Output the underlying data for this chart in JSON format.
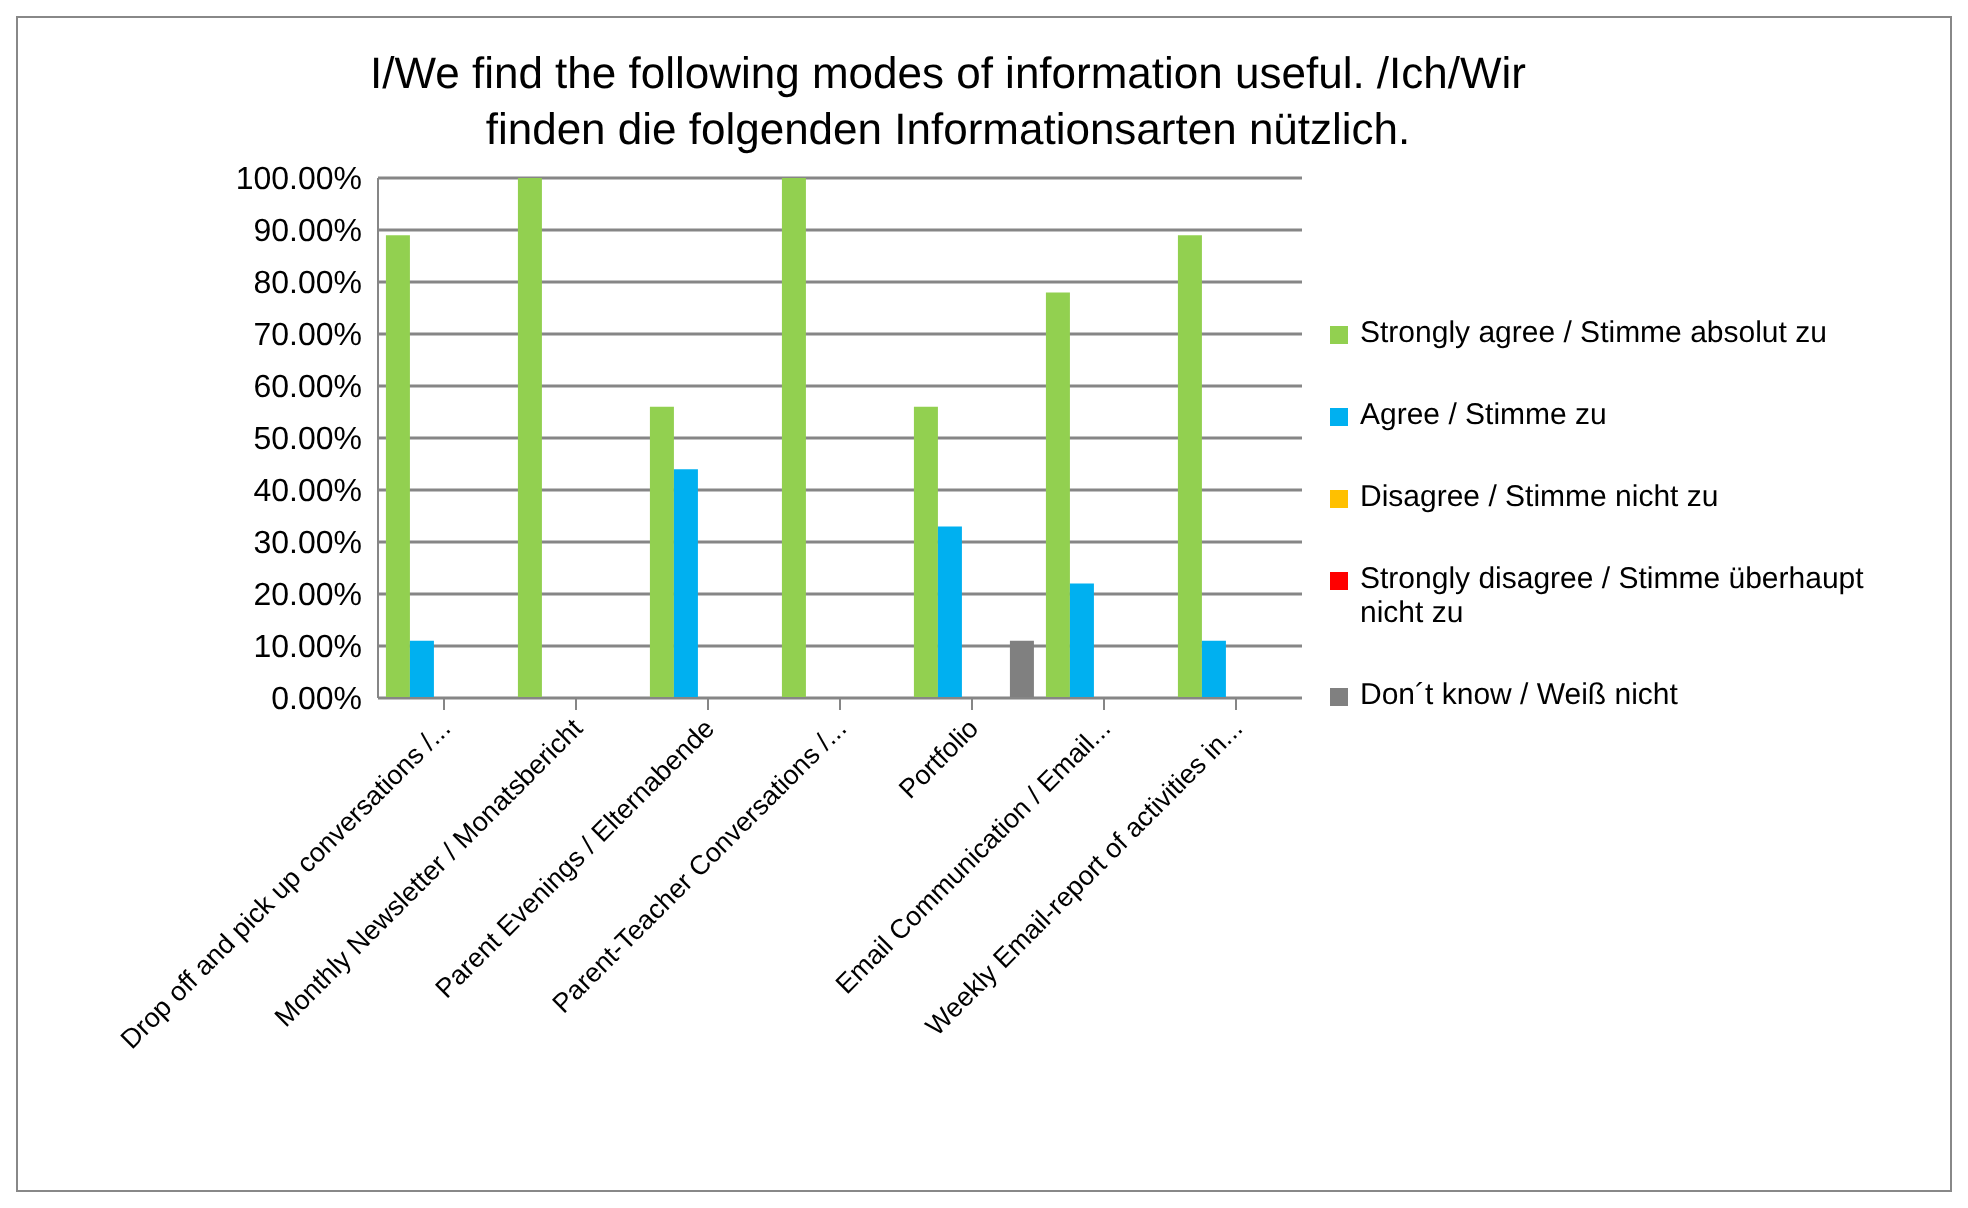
{
  "chart_data": {
    "type": "bar",
    "title": "I/We find the following modes of information useful. /Ich/Wir finden die folgenden Informationsarten nützlich.",
    "categories": [
      "Drop off and pick up conversations /...",
      "Monthly Newsletter / Monatsbericht",
      "Parent Evenings / Elternabende",
      "Parent-Teacher Conversations /...",
      "Portfolio",
      "Email Communication / Email...",
      "Weekly Email-report of activities in..."
    ],
    "series": [
      {
        "name": "Strongly agree / Stimme absolut zu",
        "color": "#92d050",
        "values": [
          89,
          100,
          56,
          100,
          56,
          78,
          89
        ]
      },
      {
        "name": "Agree / Stimme zu",
        "color": "#00b0f0",
        "values": [
          11,
          0,
          44,
          0,
          33,
          22,
          11
        ]
      },
      {
        "name": "Disagree / Stimme nicht zu",
        "color": "#ffc000",
        "values": [
          0,
          0,
          0,
          0,
          0,
          0,
          0
        ]
      },
      {
        "name": "Strongly disagree / Stimme überhaupt nicht zu",
        "color": "#ff0000",
        "values": [
          0,
          0,
          0,
          0,
          0,
          0,
          0
        ]
      },
      {
        "name": "Don´t know / Weiß nicht",
        "color": "#808080",
        "values": [
          0,
          0,
          0,
          0,
          11,
          0,
          0
        ]
      }
    ],
    "ylim": [
      0,
      100
    ],
    "yticks": [
      {
        "value": 0,
        "label": "0.00%"
      },
      {
        "value": 10,
        "label": "10.00%"
      },
      {
        "value": 20,
        "label": "20.00%"
      },
      {
        "value": 30,
        "label": "30.00%"
      },
      {
        "value": 40,
        "label": "40.00%"
      },
      {
        "value": 50,
        "label": "50.00%"
      },
      {
        "value": 60,
        "label": "60.00%"
      },
      {
        "value": 70,
        "label": "70.00%"
      },
      {
        "value": 80,
        "label": "80.00%"
      },
      {
        "value": 90,
        "label": "90.00%"
      },
      {
        "value": 100,
        "label": "100.00%"
      }
    ],
    "grid": "y",
    "legend": "right"
  }
}
